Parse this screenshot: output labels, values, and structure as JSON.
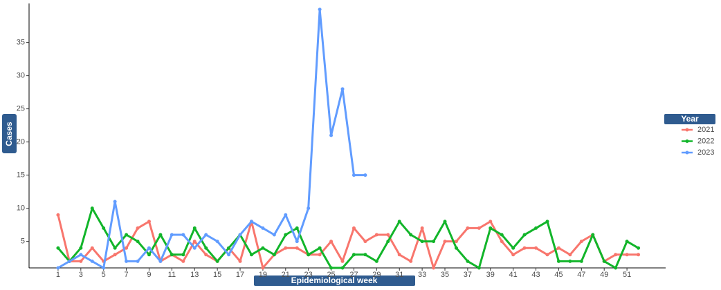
{
  "chart_data": {
    "type": "line",
    "x_label": "Epidemiological week",
    "y_label": "Cases",
    "legend_title": "Year",
    "legend_position": "right",
    "x": [
      1,
      2,
      3,
      4,
      5,
      6,
      7,
      8,
      9,
      10,
      11,
      12,
      13,
      14,
      15,
      16,
      17,
      18,
      19,
      20,
      21,
      22,
      23,
      24,
      25,
      26,
      27,
      28,
      29,
      30,
      31,
      32,
      33,
      34,
      35,
      36,
      37,
      38,
      39,
      40,
      41,
      42,
      43,
      44,
      45,
      46,
      47,
      48,
      49,
      50,
      51,
      52
    ],
    "xlim": [
      -1.55,
      54.4
    ],
    "xticks": [
      1,
      3,
      5,
      7,
      9,
      11,
      13,
      15,
      17,
      19,
      21,
      23,
      25,
      27,
      29,
      31,
      33,
      35,
      37,
      39,
      41,
      43,
      45,
      47,
      49,
      51
    ],
    "ylim": [
      1,
      40.9
    ],
    "yticks": [
      5,
      10,
      15,
      20,
      25,
      30,
      35
    ],
    "series": [
      {
        "name": "2021",
        "color": "#F8766D",
        "values": [
          9,
          2,
          2,
          4,
          2,
          3,
          4,
          7,
          8,
          2,
          3,
          2,
          5,
          3,
          2,
          4,
          2,
          8,
          1,
          3,
          4,
          4,
          3,
          3,
          5,
          2,
          7,
          5,
          6,
          6,
          3,
          2,
          7,
          1,
          5,
          5,
          7,
          7,
          8,
          5,
          3,
          4,
          4,
          3,
          4,
          3,
          5,
          6,
          2,
          3,
          3,
          3
        ]
      },
      {
        "name": "2022",
        "color": "#12B52A",
        "values": [
          4,
          2,
          4,
          10,
          7,
          4,
          6,
          5,
          3,
          6,
          3,
          3,
          7,
          4,
          2,
          4,
          6,
          3,
          4,
          3,
          6,
          7,
          3,
          4,
          1,
          1,
          3,
          3,
          2,
          5,
          8,
          6,
          5,
          5,
          8,
          4,
          2,
          1,
          7,
          6,
          4,
          6,
          7,
          8,
          2,
          2,
          2,
          6,
          2,
          1,
          5,
          4
        ]
      },
      {
        "name": "2023",
        "color": "#619CFF",
        "values": [
          1,
          2,
          3,
          2,
          1,
          11,
          2,
          2,
          4,
          2,
          6,
          6,
          4,
          6,
          5,
          3,
          6,
          8,
          7,
          6,
          9,
          5,
          10,
          40,
          21,
          28,
          15,
          15,
          null,
          null,
          null,
          null,
          null,
          null,
          null,
          null,
          null,
          null,
          null,
          null,
          null,
          null,
          null,
          null,
          null,
          null,
          null,
          null,
          null,
          null,
          null,
          null
        ]
      }
    ]
  }
}
